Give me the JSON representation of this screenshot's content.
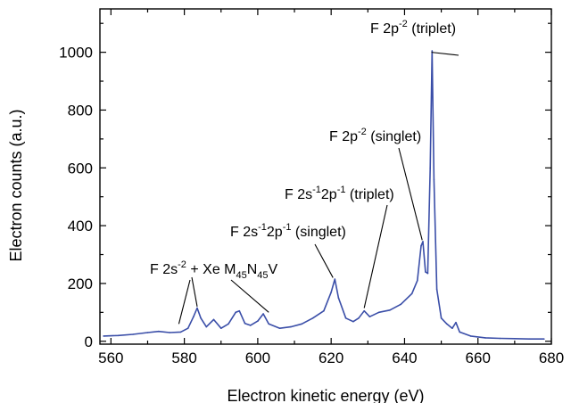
{
  "chart_data": {
    "type": "line",
    "xlabel": "Electron kinetic energy (eV)",
    "ylabel": "Electron counts (a.u.)",
    "xlim": [
      557,
      680
    ],
    "ylim": [
      -10,
      1150
    ],
    "x_ticks": [
      560,
      580,
      600,
      620,
      640,
      660,
      680
    ],
    "y_ticks": [
      0,
      200,
      400,
      600,
      800,
      1000
    ],
    "series_color": "#3a4ea8",
    "series": [
      {
        "values": [
          {
            "x": 558,
            "y": 18
          },
          {
            "x": 562,
            "y": 20
          },
          {
            "x": 566,
            "y": 24
          },
          {
            "x": 570,
            "y": 30
          },
          {
            "x": 573,
            "y": 34
          },
          {
            "x": 576,
            "y": 30
          },
          {
            "x": 579,
            "y": 32
          },
          {
            "x": 581,
            "y": 45
          },
          {
            "x": 582.5,
            "y": 85
          },
          {
            "x": 583.5,
            "y": 115
          },
          {
            "x": 584.5,
            "y": 80
          },
          {
            "x": 586,
            "y": 50
          },
          {
            "x": 588,
            "y": 75
          },
          {
            "x": 590,
            "y": 45
          },
          {
            "x": 592,
            "y": 60
          },
          {
            "x": 594,
            "y": 100
          },
          {
            "x": 595,
            "y": 105
          },
          {
            "x": 596.5,
            "y": 62
          },
          {
            "x": 598,
            "y": 55
          },
          {
            "x": 600,
            "y": 70
          },
          {
            "x": 601.5,
            "y": 95
          },
          {
            "x": 603,
            "y": 60
          },
          {
            "x": 606,
            "y": 45
          },
          {
            "x": 609,
            "y": 50
          },
          {
            "x": 612,
            "y": 60
          },
          {
            "x": 615,
            "y": 80
          },
          {
            "x": 618,
            "y": 105
          },
          {
            "x": 620,
            "y": 170
          },
          {
            "x": 621,
            "y": 215
          },
          {
            "x": 622,
            "y": 150
          },
          {
            "x": 624,
            "y": 80
          },
          {
            "x": 626,
            "y": 68
          },
          {
            "x": 627.5,
            "y": 80
          },
          {
            "x": 629,
            "y": 105
          },
          {
            "x": 630.5,
            "y": 85
          },
          {
            "x": 633,
            "y": 100
          },
          {
            "x": 636,
            "y": 108
          },
          {
            "x": 639,
            "y": 128
          },
          {
            "x": 642,
            "y": 165
          },
          {
            "x": 643.5,
            "y": 210
          },
          {
            "x": 644.5,
            "y": 330
          },
          {
            "x": 645,
            "y": 345
          },
          {
            "x": 645.7,
            "y": 240
          },
          {
            "x": 646.3,
            "y": 235
          },
          {
            "x": 647,
            "y": 600
          },
          {
            "x": 647.5,
            "y": 1005
          },
          {
            "x": 648,
            "y": 560
          },
          {
            "x": 648.8,
            "y": 180
          },
          {
            "x": 650,
            "y": 80
          },
          {
            "x": 651.5,
            "y": 60
          },
          {
            "x": 653,
            "y": 45
          },
          {
            "x": 654,
            "y": 65
          },
          {
            "x": 655,
            "y": 32
          },
          {
            "x": 658,
            "y": 18
          },
          {
            "x": 662,
            "y": 12
          },
          {
            "x": 666,
            "y": 10
          },
          {
            "x": 670,
            "y": 9
          },
          {
            "x": 674,
            "y": 8
          },
          {
            "x": 678,
            "y": 8
          }
        ]
      }
    ],
    "annotations": [
      {
        "main": "F 2p",
        "sup": "-2",
        "tail": " (triplet)",
        "point": {
          "x": 647.3,
          "y": 1000
        }
      },
      {
        "main": "F 2p",
        "sup": "-2",
        "tail": " (singlet)",
        "point": {
          "x": 644.8,
          "y": 350
        }
      },
      {
        "main": "F 2s",
        "sup": "-1",
        "main2": "2p",
        "sup2": "-1",
        "tail": " (triplet)",
        "point": {
          "x": 629,
          "y": 115
        }
      },
      {
        "main": "F 2s",
        "sup": "-1",
        "main2": "2p",
        "sup2": "-1",
        "tail": " (singlet)",
        "point": {
          "x": 620.5,
          "y": 220
        }
      },
      {
        "main": "F 2s",
        "sup": "-2",
        "tail": " + Xe M",
        "sub": "45",
        "main2": "N",
        "sub2": "45",
        "tail2": "V",
        "points": [
          {
            "x": 578.5,
            "y": 60
          },
          {
            "x": 583.5,
            "y": 120
          },
          {
            "x": 603,
            "y": 100
          }
        ]
      }
    ]
  }
}
